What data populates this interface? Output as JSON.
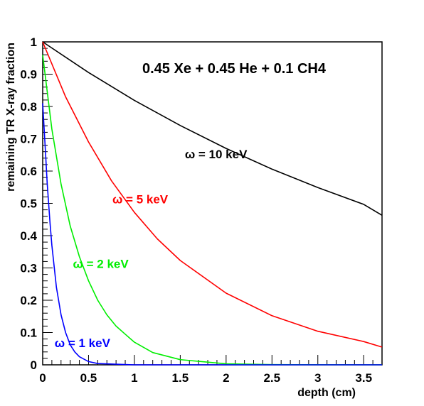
{
  "chart_data": {
    "type": "line",
    "title": "0.45 Xe + 0.45 He + 0.1 CH4",
    "xlabel": "depth (cm)",
    "ylabel": "remaining TR X-ray fraction",
    "xlim": [
      0,
      3.7
    ],
    "ylim": [
      0,
      1
    ],
    "x_ticks": [
      "0",
      "0.5",
      "1",
      "1.5",
      "2",
      "2.5",
      "3",
      "3.5"
    ],
    "y_ticks": [
      "0",
      "0.1",
      "0.2",
      "0.3",
      "0.4",
      "0.5",
      "0.6",
      "0.7",
      "0.8",
      "0.9",
      "1"
    ],
    "grid": false,
    "series": [
      {
        "name": "ω = 10 keV",
        "color": "#000000",
        "x": [
          0,
          0.5,
          1.0,
          1.5,
          2.0,
          2.5,
          3.0,
          3.5,
          3.7
        ],
        "values": [
          1.0,
          0.905,
          0.819,
          0.741,
          0.67,
          0.606,
          0.549,
          0.497,
          0.463
        ]
      },
      {
        "name": "ω = 5 keV",
        "color": "#ff0000",
        "x": [
          0,
          0.25,
          0.5,
          0.75,
          1.0,
          1.25,
          1.5,
          2.0,
          2.5,
          3.0,
          3.5,
          3.7
        ],
        "values": [
          1.0,
          0.83,
          0.69,
          0.57,
          0.472,
          0.39,
          0.323,
          0.222,
          0.152,
          0.104,
          0.072,
          0.055
        ]
      },
      {
        "name": "ω = 2 keV",
        "color": "#00ee00",
        "x": [
          0,
          0.1,
          0.2,
          0.3,
          0.4,
          0.5,
          0.6,
          0.7,
          0.8,
          0.9,
          1.0,
          1.2,
          1.5,
          2.0,
          2.5,
          3.0,
          3.5,
          3.7
        ],
        "values": [
          0.96,
          0.73,
          0.56,
          0.43,
          0.335,
          0.26,
          0.2,
          0.155,
          0.12,
          0.095,
          0.07,
          0.038,
          0.016,
          0.003,
          0.0007,
          0.0002,
          0.0,
          0.0
        ]
      },
      {
        "name": "ω = 1 keV",
        "color": "#0000ff",
        "x": [
          0,
          0.03,
          0.05,
          0.08,
          0.1,
          0.15,
          0.2,
          0.25,
          0.3,
          0.35,
          0.4,
          0.5,
          0.6,
          1.0,
          2.0,
          3.7
        ],
        "values": [
          0.81,
          0.66,
          0.56,
          0.44,
          0.37,
          0.24,
          0.155,
          0.1,
          0.062,
          0.04,
          0.025,
          0.01,
          0.004,
          0.0,
          0.0,
          0.0
        ]
      }
    ],
    "annotations": [
      {
        "text": "ω = 10 keV",
        "color": "#000000",
        "x": 1.55,
        "y": 0.64
      },
      {
        "text": "ω = 5 keV",
        "color": "#ff0000",
        "x": 0.76,
        "y": 0.5
      },
      {
        "text": "ω = 2 keV",
        "color": "#00ee00",
        "x": 0.33,
        "y": 0.3
      },
      {
        "text": "ω = 1 keV",
        "color": "#0000ff",
        "x": 0.13,
        "y": 0.055
      }
    ]
  }
}
